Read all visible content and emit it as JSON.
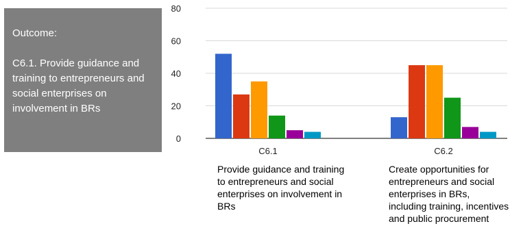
{
  "outcome": {
    "label": "Outcome:",
    "text": "C6.1. Provide guidance and training to entrepreneurs and social enterprises on involvement in BRs"
  },
  "chart_data": {
    "type": "bar",
    "categories": [
      "C6.1",
      "C6.2"
    ],
    "category_descriptions": [
      "Provide guidance and training to entrepreneurs and social enterprises on involvement in BRs",
      "Create opportunities for entrepreneurs and social enterprises in BRs, including training, incentives and public procurement"
    ],
    "series": [
      {
        "color": "#3366cc",
        "values": [
          52,
          13
        ]
      },
      {
        "color": "#dc3912",
        "values": [
          27,
          45
        ]
      },
      {
        "color": "#ff9900",
        "values": [
          35,
          45
        ]
      },
      {
        "color": "#109618",
        "values": [
          14,
          25
        ]
      },
      {
        "color": "#990099",
        "values": [
          5,
          7
        ]
      },
      {
        "color": "#0099c6",
        "values": [
          4,
          4
        ]
      }
    ],
    "yticks": [
      0,
      20,
      40,
      60,
      80
    ],
    "ylim": [
      0,
      80
    ],
    "grid": true,
    "legend": "none",
    "title": "",
    "xlabel": "",
    "ylabel": ""
  }
}
